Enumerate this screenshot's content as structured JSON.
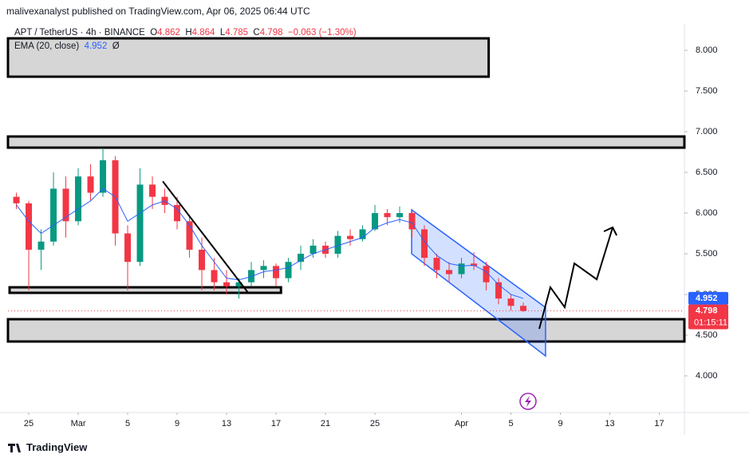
{
  "header": {
    "publisher": "malivexanalyst published on TradingView.com, Apr 06, 2025 06:44 UTC"
  },
  "legend": {
    "symbol": "APT / TetherUS · 4h · BINANCE",
    "open_label": "O",
    "open": "4.862",
    "high_label": "H",
    "high": "4.864",
    "low_label": "L",
    "low": "4.785",
    "close_label": "C",
    "close": "4.798",
    "change": "−0.063 (−1.30%)",
    "indicator": "EMA (20, close)",
    "indicator_value": "4.952",
    "indicator_icon": "Ø"
  },
  "chart_data": {
    "type": "candlestick",
    "x": [
      -1,
      0,
      1,
      2,
      3,
      4,
      5,
      6,
      7,
      8,
      9,
      10,
      11,
      12,
      13,
      14,
      15,
      16,
      17,
      18,
      19,
      20,
      21,
      22,
      23,
      24,
      25,
      26,
      27,
      28,
      29,
      30,
      31,
      32,
      33,
      34,
      35,
      36,
      37,
      38,
      39,
      40
    ],
    "open": [
      6.2,
      6.12,
      5.55,
      5.65,
      6.3,
      5.9,
      6.45,
      6.25,
      6.65,
      5.75,
      5.4,
      6.35,
      6.2,
      6.1,
      5.9,
      5.55,
      5.3,
      5.15,
      5.1,
      5.15,
      5.3,
      5.35,
      5.2,
      5.4,
      5.5,
      5.6,
      5.5,
      5.72,
      5.68,
      5.8,
      6.0,
      5.95,
      6.0,
      5.8,
      5.45,
      5.3,
      5.25,
      5.38,
      5.35,
      5.15,
      4.95,
      4.86
    ],
    "high": [
      6.25,
      6.15,
      5.8,
      6.5,
      6.45,
      6.55,
      6.6,
      6.8,
      6.7,
      5.85,
      6.55,
      6.45,
      6.3,
      6.2,
      5.95,
      5.7,
      5.45,
      5.3,
      5.2,
      5.4,
      5.42,
      5.38,
      5.45,
      5.6,
      5.68,
      5.65,
      5.78,
      5.8,
      5.85,
      6.1,
      6.05,
      6.08,
      6.02,
      5.85,
      5.5,
      5.4,
      5.45,
      5.52,
      5.4,
      5.2,
      5.0,
      4.9
    ],
    "low": [
      6.05,
      5.05,
      5.3,
      5.6,
      5.7,
      5.85,
      6.15,
      6.2,
      5.6,
      5.05,
      5.35,
      6.05,
      6.0,
      5.8,
      5.45,
      5.05,
      5.05,
      5.0,
      4.95,
      5.1,
      5.2,
      5.1,
      5.15,
      5.3,
      5.45,
      5.45,
      5.45,
      5.6,
      5.65,
      5.78,
      5.85,
      5.88,
      5.7,
      5.35,
      5.2,
      5.15,
      5.2,
      5.3,
      5.05,
      4.88,
      4.8,
      4.785
    ],
    "close": [
      6.12,
      5.55,
      5.65,
      6.3,
      5.9,
      6.45,
      6.25,
      6.65,
      5.75,
      5.4,
      6.35,
      6.2,
      6.1,
      5.9,
      5.55,
      5.3,
      5.15,
      5.1,
      5.15,
      5.3,
      5.35,
      5.2,
      5.4,
      5.5,
      5.6,
      5.5,
      5.72,
      5.68,
      5.8,
      6.0,
      5.95,
      6.0,
      5.8,
      5.45,
      5.3,
      5.25,
      5.38,
      5.35,
      5.15,
      4.95,
      4.86,
      4.798
    ],
    "up_color": "#089981",
    "down_color": "#f23645",
    "series": [
      {
        "color": "#2962ff",
        "values": [
          6.1,
          5.9,
          5.75,
          5.85,
          5.95,
          6.05,
          6.15,
          6.3,
          6.2,
          5.9,
          6.0,
          6.1,
          6.15,
          6.05,
          5.85,
          5.6,
          5.4,
          5.2,
          5.18,
          5.22,
          5.28,
          5.3,
          5.33,
          5.42,
          5.5,
          5.55,
          5.6,
          5.65,
          5.7,
          5.82,
          5.88,
          5.92,
          5.88,
          5.65,
          5.48,
          5.38,
          5.35,
          5.36,
          5.28,
          5.12,
          5.0,
          4.952
        ]
      }
    ],
    "xlim": [
      -1.68,
      53.03
    ],
    "ylim": [
      3.569,
      8.324
    ],
    "xticks": [
      {
        "value": 0,
        "label": "25"
      },
      {
        "value": 4,
        "label": "Mar"
      },
      {
        "value": 8,
        "label": "5"
      },
      {
        "value": 12,
        "label": "9"
      },
      {
        "value": 16,
        "label": "13"
      },
      {
        "value": 20,
        "label": "17"
      },
      {
        "value": 24,
        "label": "21"
      },
      {
        "value": 28,
        "label": "25"
      },
      {
        "value": 35,
        "label": "Apr"
      },
      {
        "value": 39,
        "label": "5"
      },
      {
        "value": 43,
        "label": "9"
      },
      {
        "value": 47,
        "label": "13"
      },
      {
        "value": 51,
        "label": "17"
      }
    ],
    "yticks": [
      {
        "value": 4,
        "label": "4.000"
      },
      {
        "value": 4.5,
        "label": "4.500"
      },
      {
        "value": 5,
        "label": "5.000"
      },
      {
        "value": 5.5,
        "label": "5.500"
      },
      {
        "value": 6,
        "label": "6.000"
      },
      {
        "value": 6.5,
        "label": "6.500"
      },
      {
        "value": 7,
        "label": "7.000"
      },
      {
        "value": 7.5,
        "label": "7.500"
      },
      {
        "value": 8,
        "label": "8.000"
      }
    ],
    "last_price": 4.798,
    "ema_last": 4.952,
    "countdown": "01:15:11",
    "zones": [
      {
        "x": [
          -1.68,
          37.2
        ],
        "price": [
          7.676,
          8.147
        ]
      },
      {
        "x": [
          -1.68,
          53.03
        ],
        "price": [
          6.804,
          6.941
        ]
      },
      {
        "x": [
          -1.55,
          20.4
        ],
        "price": [
          5.02,
          5.088
        ]
      },
      {
        "x": [
          -1.68,
          53.03
        ],
        "price": [
          4.422,
          4.696
        ]
      }
    ],
    "trendline": {
      "x": [
        10.84,
        17.8
      ],
      "price": [
        6.39,
        5.01
      ]
    },
    "channel": {
      "x": [
        30.97,
        41.8,
        41.8,
        30.97
      ],
      "price": [
        6.04,
        4.84,
        4.245,
        5.5
      ]
    },
    "projection": {
      "x": [
        41.29,
        42.19,
        43.35,
        44.13,
        45.94,
        47.23
      ],
      "price": [
        4.578,
        5.088,
        4.843,
        5.382,
        5.186,
        5.824
      ]
    }
  },
  "footer": {
    "brand": "TradingView"
  }
}
